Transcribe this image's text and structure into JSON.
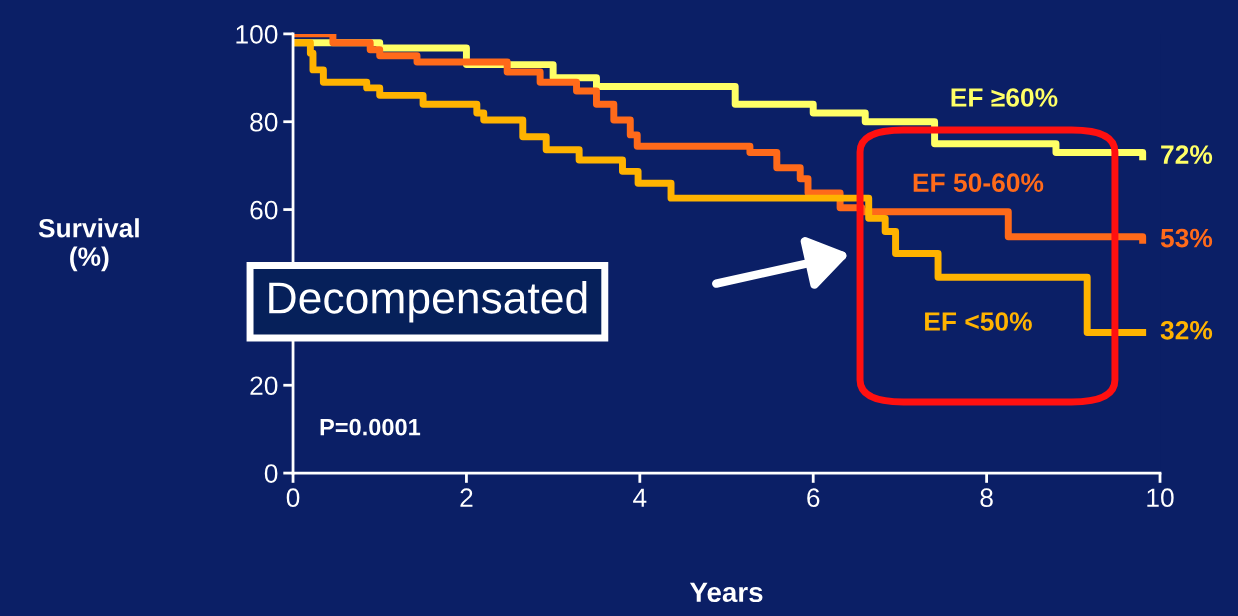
{
  "chart_data": {
    "type": "step",
    "xlabel": "Years",
    "ylabel": "Survival\n(%)",
    "xlim": [
      0,
      10
    ],
    "ylim": [
      0,
      100
    ],
    "xticks": [
      0,
      2,
      4,
      6,
      8,
      10
    ],
    "yticks": [
      0,
      20,
      60,
      80,
      100
    ],
    "grid": false,
    "marker": "none",
    "line_style": "solid",
    "series": [
      {
        "name": "EF ≥60%",
        "color": "#ffff66",
        "x": [
          0,
          1,
          2,
          3,
          3.5,
          4.5,
          5.1,
          6.0,
          6.6,
          7.4,
          8.8,
          9.8
        ],
        "values": [
          98,
          96.8,
          93,
          90,
          88,
          88,
          84,
          82,
          80,
          75,
          73,
          72
        ]
      },
      {
        "name": "EF 50-60%",
        "color": "#ff6a1a",
        "x": [
          0,
          0.46,
          0.89,
          1.0,
          1.43,
          2.47,
          2.85,
          3.27,
          3.5,
          3.7,
          3.89,
          3.97,
          5.27,
          5.58,
          5.85,
          5.94,
          6.31,
          6.56,
          8.25,
          9.8
        ],
        "values": [
          100,
          98,
          96.4,
          95,
          93.6,
          91.3,
          89,
          87,
          84,
          80.4,
          77,
          74.4,
          73,
          69.5,
          67,
          63.8,
          60.4,
          59.5,
          53.8,
          53
        ]
      },
      {
        "name": "EF <50%",
        "color": "#ffb300",
        "x": [
          0,
          0.2,
          0.23,
          0.35,
          0.85,
          1.0,
          1.5,
          2.12,
          2.2,
          2.65,
          2.92,
          3.3,
          3.8,
          3.98,
          4.36,
          6.64,
          6.83,
          6.95,
          7.44,
          9.16,
          9.8
        ],
        "values": [
          98,
          95.6,
          91.8,
          89,
          87.7,
          86,
          84,
          82,
          80.4,
          76.6,
          73.6,
          71.3,
          68.7,
          66,
          62.6,
          58,
          55,
          50,
          44.6,
          32,
          32
        ]
      }
    ],
    "annotations": [
      "72%",
      "53%",
      "32%",
      "P=0.0001",
      "Decompensated"
    ]
  }
}
